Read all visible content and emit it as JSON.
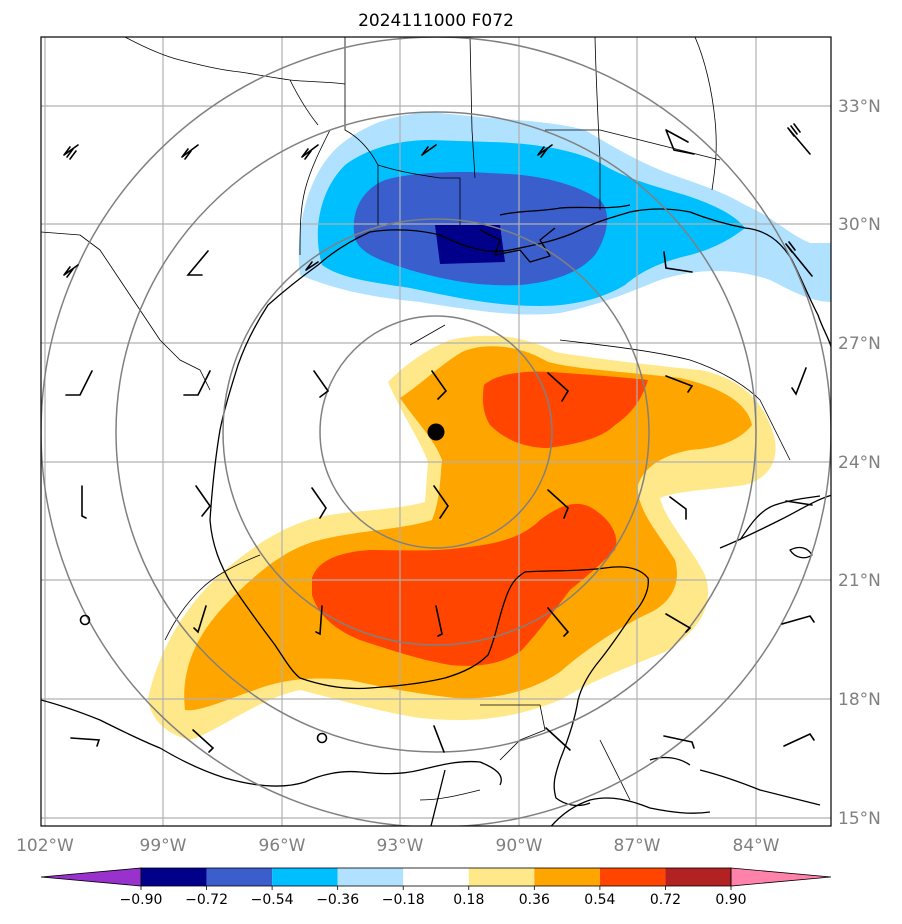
{
  "title": "2024111000 F072",
  "lon_labels": [
    "102°W",
    "99°W",
    "96°W",
    "93°W",
    "90°W",
    "87°W",
    "84°W"
  ],
  "lat_labels": [
    "33°N",
    "30°N",
    "27°N",
    "24°N",
    "21°N",
    "18°N",
    "15°N"
  ],
  "colorbar": {
    "levels": [
      "−0.90",
      "−0.72",
      "−0.54",
      "−0.36",
      "−0.18",
      "0.18",
      "0.36",
      "0.54",
      "0.72",
      "0.90"
    ],
    "colors": [
      "#9932cc",
      "#00008b",
      "#3a5fcd",
      "#00bfff",
      "#b0e2ff",
      "#ffffff",
      "#ffe88a",
      "#ffa500",
      "#ff4500",
      "#b22222",
      "#ff82ab"
    ]
  },
  "storm_center": {
    "lon": -92.1,
    "lat": 24.8
  },
  "map_extent": {
    "lon": [
      -102.1,
      -82.1
    ],
    "lat": [
      14.8,
      34.7
    ]
  },
  "range_rings": "concentric circles centered on storm center"
}
